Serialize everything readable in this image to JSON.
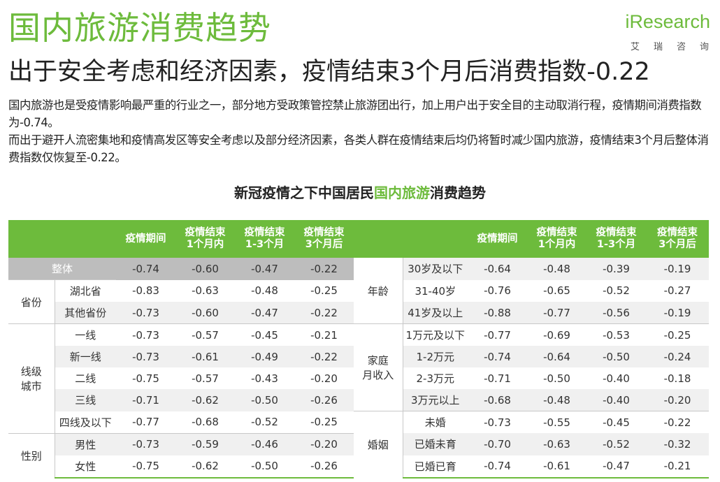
{
  "header": {
    "title": "国内旅游消费趋势",
    "subtitle": "出于安全考虑和经济因素，疫情结束3个月后消费指数-0.22"
  },
  "logo": {
    "prefix": "i",
    "word": "Research",
    "cn": "艾瑞咨询"
  },
  "paragraph": {
    "line1": "国内旅游也是受疫情影响最严重的行业之一，部分地方受政策管控禁止旅游团出行，加上用户出于安全目的主动取消行程，疫情期间消费指数为-0.74。",
    "line2": "而出于避开人流密集地和疫情高发区等安全考虑以及部分经济因素，各类人群在疫情结束后均仍将暂时减少国内旅游，疫情结束3个月后整体消费指数仅恢复至-0.22。"
  },
  "table_title": {
    "before": "新冠疫情之下中国居民",
    "highlight": "国内旅游",
    "after": "消费趋势"
  },
  "table": {
    "headers": {
      "c1": "疫情期间",
      "c2a": "疫情结束",
      "c2b": "1个月内",
      "c3a": "疫情结束",
      "c3b": "1-3个月",
      "c4a": "疫情结束",
      "c4b": "3个月后"
    },
    "left": {
      "overall": {
        "label": "整体",
        "values": [
          "-0.74",
          "-0.60",
          "-0.47",
          "-0.22"
        ]
      },
      "province": {
        "group": "省份",
        "rows": [
          {
            "label": "湖北省",
            "values": [
              "-0.83",
              "-0.63",
              "-0.48",
              "-0.25"
            ]
          },
          {
            "label": "其他省份",
            "values": [
              "-0.73",
              "-0.60",
              "-0.47",
              "-0.22"
            ]
          }
        ]
      },
      "city": {
        "group_a": "线级",
        "group_b": "城市",
        "rows": [
          {
            "label": "一线",
            "values": [
              "-0.73",
              "-0.57",
              "-0.45",
              "-0.21"
            ]
          },
          {
            "label": "新一线",
            "values": [
              "-0.73",
              "-0.61",
              "-0.49",
              "-0.22"
            ]
          },
          {
            "label": "二线",
            "values": [
              "-0.75",
              "-0.57",
              "-0.43",
              "-0.20"
            ]
          },
          {
            "label": "三线",
            "values": [
              "-0.71",
              "-0.62",
              "-0.50",
              "-0.26"
            ]
          },
          {
            "label": "四线及以下",
            "values": [
              "-0.77",
              "-0.68",
              "-0.52",
              "-0.25"
            ]
          }
        ]
      },
      "gender": {
        "group": "性别",
        "rows": [
          {
            "label": "男性",
            "values": [
              "-0.73",
              "-0.59",
              "-0.46",
              "-0.20"
            ]
          },
          {
            "label": "女性",
            "values": [
              "-0.75",
              "-0.62",
              "-0.50",
              "-0.26"
            ]
          }
        ]
      }
    },
    "right": {
      "age": {
        "group": "年龄",
        "rows": [
          {
            "label": "30岁及以下",
            "values": [
              "-0.64",
              "-0.48",
              "-0.39",
              "-0.19"
            ]
          },
          {
            "label": "31-40岁",
            "values": [
              "-0.76",
              "-0.65",
              "-0.52",
              "-0.27"
            ]
          },
          {
            "label": "41岁及以上",
            "values": [
              "-0.88",
              "-0.77",
              "-0.56",
              "-0.19"
            ]
          }
        ]
      },
      "income": {
        "group_a": "家庭",
        "group_b": "月收入",
        "rows": [
          {
            "label": "1万元及以下",
            "values": [
              "-0.77",
              "-0.69",
              "-0.53",
              "-0.25"
            ]
          },
          {
            "label": "1-2万元",
            "values": [
              "-0.74",
              "-0.64",
              "-0.50",
              "-0.24"
            ]
          },
          {
            "label": "2-3万元",
            "values": [
              "-0.71",
              "-0.50",
              "-0.40",
              "-0.18"
            ]
          },
          {
            "label": "3万元以上",
            "values": [
              "-0.68",
              "-0.48",
              "-0.40",
              "-0.20"
            ]
          }
        ]
      },
      "marriage": {
        "group": "婚姻",
        "rows": [
          {
            "label": "未婚",
            "values": [
              "-0.73",
              "-0.55",
              "-0.45",
              "-0.22"
            ]
          },
          {
            "label": "已婚未育",
            "values": [
              "-0.70",
              "-0.63",
              "-0.52",
              "-0.32"
            ]
          },
          {
            "label": "已婚已育",
            "values": [
              "-0.74",
              "-0.61",
              "-0.47",
              "-0.21"
            ]
          }
        ]
      }
    }
  },
  "colors": {
    "brand_green": "#6dbb3c",
    "overall_row_gray": "#bdbdbd",
    "stripe_gray": "#f0f0f0"
  }
}
